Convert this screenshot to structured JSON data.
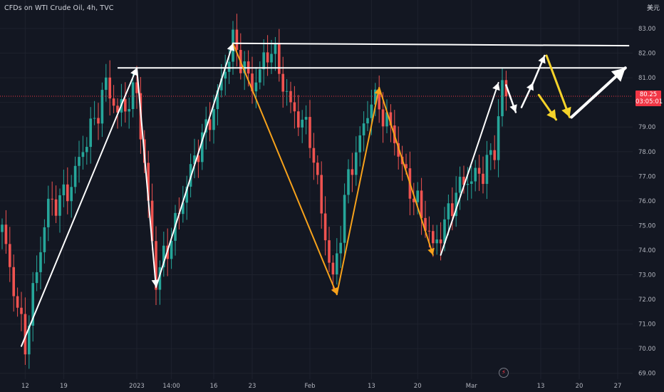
{
  "header": {
    "title": "CFDs on WTI Crude Oil, 4h, TVC",
    "currency": "美元"
  },
  "price_badge": {
    "price": "80.25",
    "countdown": "03:05:01"
  },
  "icons": {
    "flash": "lightning-icon"
  },
  "colors": {
    "background": "#131722",
    "up": "#26a69a",
    "down": "#ef5350",
    "annotation_white": "#ffffff",
    "annotation_orange": "#f7a21b",
    "annotation_yellow": "#f5d32a",
    "price_line": "#f23645"
  },
  "chart_data": {
    "type": "candlestick",
    "title": "CFDs on WTI Crude Oil, 4h, TVC",
    "ylim": [
      68.8,
      83.5
    ],
    "y_ticks": [
      69.0,
      70.0,
      71.0,
      72.0,
      73.0,
      74.0,
      75.0,
      76.0,
      77.0,
      78.0,
      79.0,
      80.0,
      81.0,
      82.0,
      83.0
    ],
    "x_ticks": [
      {
        "label": "12",
        "i": 6
      },
      {
        "label": "19",
        "i": 16
      },
      {
        "label": "2023",
        "i": 35
      },
      {
        "label": "14:00",
        "i": 44
      },
      {
        "label": "16",
        "i": 55
      },
      {
        "label": "23",
        "i": 65
      },
      {
        "label": "Feb",
        "i": 80
      },
      {
        "label": "13",
        "i": 96
      },
      {
        "label": "20",
        "i": 108
      },
      {
        "label": "Mar",
        "i": 122
      },
      {
        "label": "13",
        "i": 140
      },
      {
        "label": "20",
        "i": 150
      },
      {
        "label": "27",
        "i": 160
      }
    ],
    "last_price": 80.25,
    "pivots": [
      [
        0,
        74.7
      ],
      [
        6,
        70.3
      ],
      [
        12,
        75.8
      ],
      [
        18,
        76.6
      ],
      [
        27,
        80.8
      ],
      [
        30,
        79.4
      ],
      [
        35,
        80.6
      ],
      [
        40,
        72.6
      ],
      [
        45,
        75.2
      ],
      [
        52,
        78.5
      ],
      [
        60,
        82.3
      ],
      [
        65,
        80.8
      ],
      [
        70,
        82.1
      ],
      [
        75,
        80.0
      ],
      [
        80,
        78.5
      ],
      [
        86,
        72.8
      ],
      [
        90,
        76.8
      ],
      [
        96,
        80.3
      ],
      [
        102,
        78.5
      ],
      [
        106,
        76.6
      ],
      [
        112,
        74.1
      ],
      [
        118,
        76.3
      ],
      [
        124,
        77.2
      ],
      [
        128,
        78.0
      ],
      [
        130,
        80.6
      ],
      [
        131,
        80.25
      ]
    ],
    "annotations": {
      "resistance_lines": [
        {
          "from": [
            30,
            81.4
          ],
          "to": [
            162,
            81.4
          ]
        },
        {
          "from": [
            60,
            82.4
          ],
          "to": [
            163,
            82.3
          ]
        }
      ],
      "white_legs": [
        [
          [
            5,
            70.1
          ],
          [
            35,
            81.4
          ]
        ],
        [
          [
            35,
            81.4
          ],
          [
            40,
            72.5
          ]
        ],
        [
          [
            40,
            72.5
          ],
          [
            60,
            82.4
          ]
        ],
        [
          [
            114,
            73.8
          ],
          [
            129,
            80.8
          ]
        ]
      ],
      "orange_legs": [
        [
          [
            60,
            82.4
          ],
          [
            87,
            72.2
          ]
        ],
        [
          [
            87,
            72.2
          ],
          [
            98,
            80.6
          ]
        ],
        [
          [
            98,
            80.6
          ],
          [
            112,
            73.8
          ]
        ]
      ],
      "white_projection": [
        [
          [
            131,
            80.7
          ],
          [
            133.5,
            79.6
          ]
        ],
        [
          [
            135,
            79.8
          ],
          [
            138,
            80.8
          ]
        ],
        [
          [
            137.5,
            80.6
          ],
          [
            141,
            81.9
          ]
        ],
        [
          [
            148,
            79.4
          ],
          [
            162,
            81.4
          ]
        ]
      ],
      "yellow_projection": [
        [
          [
            141.5,
            81.9
          ],
          [
            147.5,
            79.4
          ]
        ],
        [
          [
            139.5,
            80.3
          ],
          [
            144,
            79.3
          ]
        ]
      ]
    }
  }
}
